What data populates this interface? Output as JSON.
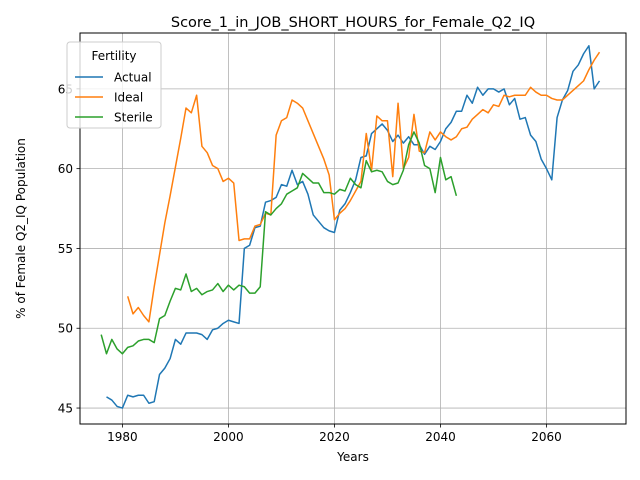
{
  "chart_data": {
    "type": "line",
    "title": "Score_1_in_JOB_SHORT_HOURS_for_Female_Q2_IQ",
    "xlabel": "Years",
    "ylabel": "% of Female Q2_IQ Population",
    "xlim": [
      1972,
      2075
    ],
    "ylim": [
      44,
      68.5
    ],
    "xticks": [
      1980,
      2000,
      2020,
      2040,
      2060
    ],
    "yticks": [
      45,
      50,
      55,
      60,
      65
    ],
    "grid": true,
    "legend": {
      "title": "Fertility",
      "placement": "top-left"
    },
    "series": [
      {
        "name": "Actual",
        "color": "#1f77b4",
        "points": [
          [
            1977,
            45.7
          ],
          [
            1978,
            45.5
          ],
          [
            1979,
            45.1
          ],
          [
            1980,
            45.0
          ],
          [
            1981,
            45.8
          ],
          [
            1982,
            45.7
          ],
          [
            1983,
            45.8
          ],
          [
            1984,
            45.8
          ],
          [
            1985,
            45.3
          ],
          [
            1986,
            45.4
          ],
          [
            1987,
            47.1
          ],
          [
            1988,
            47.5
          ],
          [
            1989,
            48.1
          ],
          [
            1990,
            49.3
          ],
          [
            1991,
            49.0
          ],
          [
            1992,
            49.7
          ],
          [
            1993,
            49.7
          ],
          [
            1994,
            49.7
          ],
          [
            1995,
            49.6
          ],
          [
            1996,
            49.3
          ],
          [
            1997,
            49.9
          ],
          [
            1998,
            50.0
          ],
          [
            1999,
            50.3
          ],
          [
            2000,
            50.5
          ],
          [
            2001,
            50.4
          ],
          [
            2002,
            50.3
          ],
          [
            2003,
            55.0
          ],
          [
            2004,
            55.2
          ],
          [
            2005,
            56.3
          ],
          [
            2006,
            56.4
          ],
          [
            2007,
            57.9
          ],
          [
            2008,
            58.0
          ],
          [
            2009,
            58.2
          ],
          [
            2010,
            59.0
          ],
          [
            2011,
            58.9
          ],
          [
            2012,
            59.9
          ],
          [
            2013,
            59.0
          ],
          [
            2014,
            59.2
          ],
          [
            2015,
            58.4
          ],
          [
            2016,
            57.1
          ],
          [
            2017,
            56.7
          ],
          [
            2018,
            56.3
          ],
          [
            2019,
            56.1
          ],
          [
            2020,
            56.0
          ],
          [
            2021,
            57.4
          ],
          [
            2022,
            57.8
          ],
          [
            2023,
            58.5
          ],
          [
            2024,
            59.3
          ],
          [
            2025,
            60.7
          ],
          [
            2026,
            60.8
          ],
          [
            2027,
            62.2
          ],
          [
            2028,
            62.5
          ],
          [
            2029,
            62.8
          ],
          [
            2030,
            62.4
          ],
          [
            2031,
            61.7
          ],
          [
            2032,
            62.1
          ],
          [
            2033,
            61.6
          ],
          [
            2034,
            62.0
          ],
          [
            2035,
            61.5
          ],
          [
            2036,
            61.5
          ],
          [
            2037,
            60.9
          ],
          [
            2038,
            61.4
          ],
          [
            2039,
            61.2
          ],
          [
            2040,
            61.7
          ],
          [
            2041,
            62.5
          ],
          [
            2042,
            62.9
          ],
          [
            2043,
            63.6
          ],
          [
            2044,
            63.6
          ],
          [
            2045,
            64.6
          ],
          [
            2046,
            64.1
          ],
          [
            2047,
            65.1
          ],
          [
            2048,
            64.6
          ],
          [
            2049,
            65.0
          ],
          [
            2050,
            65.0
          ],
          [
            2051,
            64.8
          ],
          [
            2052,
            65.0
          ],
          [
            2053,
            64.0
          ],
          [
            2054,
            64.4
          ],
          [
            2055,
            63.1
          ],
          [
            2056,
            63.2
          ],
          [
            2057,
            62.1
          ],
          [
            2058,
            61.7
          ],
          [
            2059,
            60.6
          ],
          [
            2060,
            60.0
          ],
          [
            2061,
            59.3
          ],
          [
            2062,
            63.2
          ],
          [
            2063,
            64.3
          ],
          [
            2064,
            64.9
          ],
          [
            2065,
            66.1
          ],
          [
            2066,
            66.5
          ],
          [
            2067,
            67.2
          ],
          [
            2068,
            67.7
          ],
          [
            2069,
            65.0
          ],
          [
            2070,
            65.5
          ]
        ]
      },
      {
        "name": "Ideal",
        "color": "#ff7f0e",
        "points": [
          [
            1981,
            52.0
          ],
          [
            1982,
            50.9
          ],
          [
            1983,
            51.3
          ],
          [
            1984,
            50.8
          ],
          [
            1985,
            50.4
          ],
          [
            1986,
            52.6
          ],
          [
            1987,
            54.6
          ],
          [
            1988,
            56.6
          ],
          [
            1989,
            58.3
          ],
          [
            1990,
            60.1
          ],
          [
            1991,
            61.9
          ],
          [
            1992,
            63.8
          ],
          [
            1993,
            63.5
          ],
          [
            1994,
            64.6
          ],
          [
            1995,
            61.4
          ],
          [
            1996,
            61.0
          ],
          [
            1997,
            60.2
          ],
          [
            1998,
            60.0
          ],
          [
            1999,
            59.2
          ],
          [
            2000,
            59.4
          ],
          [
            2001,
            59.1
          ],
          [
            2002,
            55.5
          ],
          [
            2003,
            55.6
          ],
          [
            2004,
            55.6
          ],
          [
            2005,
            56.4
          ],
          [
            2006,
            56.5
          ],
          [
            2007,
            57.2
          ],
          [
            2008,
            57.1
          ],
          [
            2009,
            62.1
          ],
          [
            2010,
            63.0
          ],
          [
            2011,
            63.2
          ],
          [
            2012,
            64.3
          ],
          [
            2013,
            64.1
          ],
          [
            2014,
            63.8
          ],
          [
            2015,
            63.0
          ],
          [
            2016,
            62.2
          ],
          [
            2017,
            61.4
          ],
          [
            2018,
            60.6
          ],
          [
            2019,
            59.6
          ],
          [
            2020,
            56.8
          ],
          [
            2021,
            57.2
          ],
          [
            2022,
            57.5
          ],
          [
            2023,
            58.0
          ],
          [
            2024,
            58.6
          ],
          [
            2025,
            59.2
          ],
          [
            2026,
            62.2
          ],
          [
            2027,
            59.9
          ],
          [
            2028,
            63.3
          ],
          [
            2029,
            63.0
          ],
          [
            2030,
            63.0
          ],
          [
            2031,
            59.5
          ],
          [
            2032,
            64.1
          ],
          [
            2033,
            60.0
          ],
          [
            2034,
            60.7
          ],
          [
            2035,
            63.4
          ],
          [
            2036,
            61.1
          ],
          [
            2037,
            61.0
          ],
          [
            2038,
            62.3
          ],
          [
            2039,
            61.8
          ],
          [
            2040,
            62.3
          ],
          [
            2041,
            62.0
          ],
          [
            2042,
            61.8
          ],
          [
            2043,
            62.0
          ],
          [
            2044,
            62.5
          ],
          [
            2045,
            62.6
          ],
          [
            2046,
            63.1
          ],
          [
            2047,
            63.4
          ],
          [
            2048,
            63.7
          ],
          [
            2049,
            63.5
          ],
          [
            2050,
            64.0
          ],
          [
            2051,
            63.9
          ],
          [
            2052,
            64.6
          ],
          [
            2053,
            64.5
          ],
          [
            2054,
            64.6
          ],
          [
            2055,
            64.6
          ],
          [
            2056,
            64.6
          ],
          [
            2057,
            65.1
          ],
          [
            2058,
            64.8
          ],
          [
            2059,
            64.6
          ],
          [
            2060,
            64.6
          ],
          [
            2061,
            64.4
          ],
          [
            2062,
            64.3
          ],
          [
            2063,
            64.3
          ],
          [
            2064,
            64.6
          ],
          [
            2065,
            64.9
          ],
          [
            2066,
            65.2
          ],
          [
            2067,
            65.5
          ],
          [
            2068,
            66.2
          ],
          [
            2069,
            66.8
          ],
          [
            2070,
            67.3
          ]
        ]
      },
      {
        "name": "Sterile",
        "color": "#2ca02c",
        "points": [
          [
            1976,
            49.6
          ],
          [
            1977,
            48.4
          ],
          [
            1978,
            49.3
          ],
          [
            1979,
            48.7
          ],
          [
            1980,
            48.4
          ],
          [
            1981,
            48.8
          ],
          [
            1982,
            48.9
          ],
          [
            1983,
            49.2
          ],
          [
            1984,
            49.3
          ],
          [
            1985,
            49.3
          ],
          [
            1986,
            49.1
          ],
          [
            1987,
            50.6
          ],
          [
            1988,
            50.8
          ],
          [
            1989,
            51.7
          ],
          [
            1990,
            52.5
          ],
          [
            1991,
            52.4
          ],
          [
            1992,
            53.4
          ],
          [
            1993,
            52.3
          ],
          [
            1994,
            52.5
          ],
          [
            1995,
            52.1
          ],
          [
            1996,
            52.3
          ],
          [
            1997,
            52.4
          ],
          [
            1998,
            52.8
          ],
          [
            1999,
            52.3
          ],
          [
            2000,
            52.7
          ],
          [
            2001,
            52.4
          ],
          [
            2002,
            52.7
          ],
          [
            2003,
            52.6
          ],
          [
            2004,
            52.2
          ],
          [
            2005,
            52.2
          ],
          [
            2006,
            52.6
          ],
          [
            2007,
            57.3
          ],
          [
            2008,
            57.1
          ],
          [
            2009,
            57.5
          ],
          [
            2010,
            57.8
          ],
          [
            2011,
            58.4
          ],
          [
            2012,
            58.6
          ],
          [
            2013,
            58.8
          ],
          [
            2014,
            59.7
          ],
          [
            2015,
            59.4
          ],
          [
            2016,
            59.1
          ],
          [
            2017,
            59.1
          ],
          [
            2018,
            58.5
          ],
          [
            2019,
            58.5
          ],
          [
            2020,
            58.4
          ],
          [
            2021,
            58.7
          ],
          [
            2022,
            58.6
          ],
          [
            2023,
            59.4
          ],
          [
            2024,
            59.0
          ],
          [
            2025,
            58.8
          ],
          [
            2026,
            60.5
          ],
          [
            2027,
            59.8
          ],
          [
            2028,
            59.9
          ],
          [
            2029,
            59.8
          ],
          [
            2030,
            59.2
          ],
          [
            2031,
            59.0
          ],
          [
            2032,
            59.1
          ],
          [
            2033,
            59.9
          ],
          [
            2034,
            61.5
          ],
          [
            2035,
            62.3
          ],
          [
            2036,
            61.6
          ],
          [
            2037,
            60.2
          ],
          [
            2038,
            60.0
          ],
          [
            2039,
            58.5
          ],
          [
            2040,
            60.7
          ],
          [
            2041,
            59.3
          ],
          [
            2042,
            59.5
          ],
          [
            2043,
            58.3
          ]
        ]
      }
    ]
  }
}
